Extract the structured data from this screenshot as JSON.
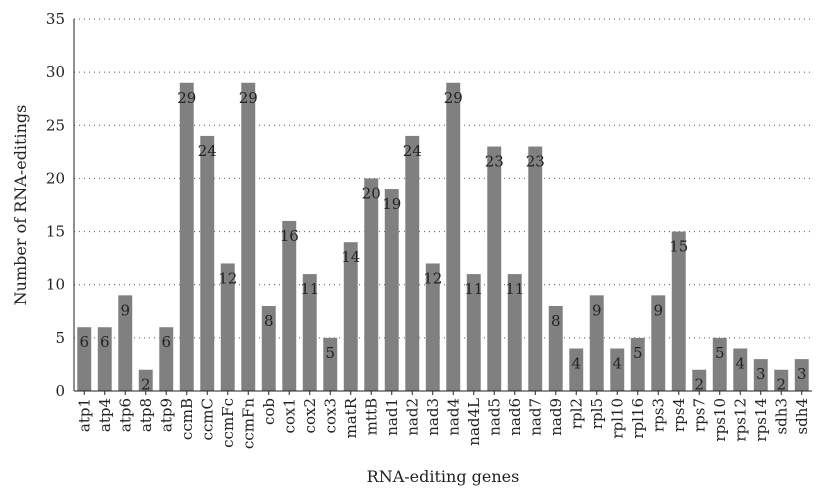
{
  "chart_data": {
    "type": "bar",
    "xlabel": "RNA-editing genes",
    "ylabel": "Number of RNA-editings",
    "ylim": [
      0,
      35
    ],
    "yticks": [
      0,
      5,
      10,
      15,
      20,
      25,
      30,
      35
    ],
    "grid": true,
    "legend": "none",
    "bar_color": "#808080",
    "categories": [
      "atp1",
      "atp4",
      "atp6",
      "atp8",
      "atp9",
      "ccmB",
      "ccmC",
      "ccmFc",
      "ccmFn",
      "cob",
      "cox1",
      "cox2",
      "cox3",
      "matR",
      "mttB",
      "nad1",
      "nad2",
      "nad3",
      "nad4",
      "nad4L",
      "nad5",
      "nad6",
      "nad7",
      "nad9",
      "rpl2",
      "rpl5",
      "rpl10",
      "rpl16",
      "rps3",
      "rps4",
      "rps7",
      "rps10",
      "rps12",
      "rps14",
      "sdh3",
      "sdh4"
    ],
    "values": [
      6,
      6,
      9,
      2,
      6,
      29,
      24,
      12,
      29,
      8,
      16,
      11,
      5,
      14,
      20,
      19,
      24,
      12,
      29,
      11,
      23,
      11,
      23,
      8,
      4,
      9,
      4,
      5,
      9,
      15,
      2,
      5,
      4,
      3,
      2,
      3
    ],
    "data_labels": [
      "6",
      "6",
      "9",
      "2",
      "6",
      "29",
      "24",
      "12",
      "29",
      "8",
      "16",
      "11",
      "5",
      "14",
      "20",
      "19",
      "24",
      "12",
      "29",
      "11",
      "23",
      "11",
      "23",
      "8",
      "4",
      "9",
      "4",
      "5",
      "9",
      "15",
      "2",
      "5",
      "4",
      "3",
      "2",
      "3"
    ]
  }
}
